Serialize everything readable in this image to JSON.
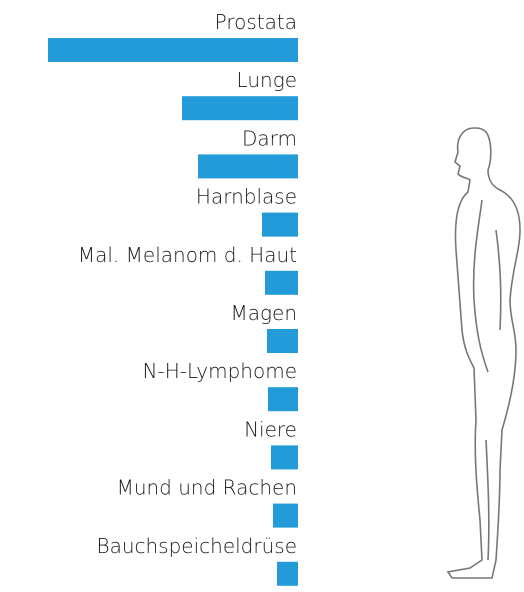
{
  "chart_data": {
    "type": "hbar",
    "categories": [
      "Prostata",
      "Lunge",
      "Darm",
      "Harnblase",
      "Mal. Melanom d. Haut",
      "Magen",
      "N-H-Lymphome",
      "Niere",
      "Mund und Rachen",
      "Bauchspeicheldrüse"
    ],
    "values": [
      25,
      11.6,
      10,
      3.6,
      3.3,
      3.1,
      3.0,
      2.7,
      2.5,
      2.1
    ],
    "color": "#229bd8",
    "xlim": [
      0,
      25
    ]
  }
}
